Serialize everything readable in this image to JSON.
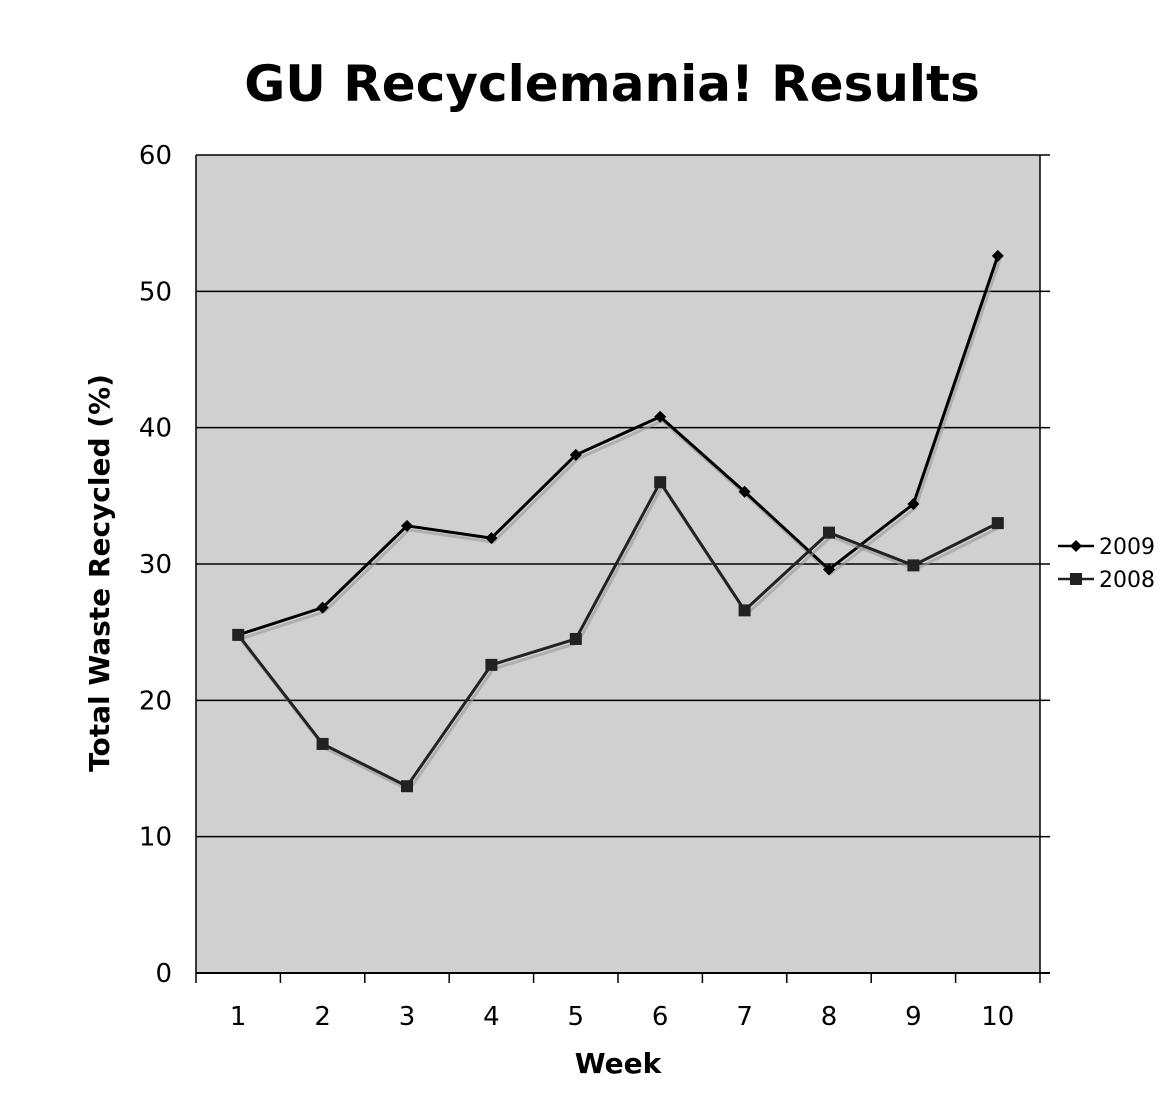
{
  "chart_data": {
    "type": "line",
    "title": "GU Recyclemania! Results",
    "xlabel": "Week",
    "ylabel": "Total Waste Recycled (%)",
    "categories": [
      "1",
      "2",
      "3",
      "4",
      "5",
      "6",
      "7",
      "8",
      "9",
      "10"
    ],
    "ylim": [
      0,
      60
    ],
    "yticks": [
      "0",
      "10",
      "20",
      "30",
      "40",
      "50",
      "60"
    ],
    "grid": true,
    "legend_position": "right",
    "plot_background": "#d0d0d0",
    "series": [
      {
        "name": "2009",
        "marker": "diamond",
        "color": "#000000",
        "values": [
          24.8,
          26.8,
          32.8,
          31.9,
          38.0,
          40.8,
          35.3,
          29.6,
          34.4,
          52.6
        ]
      },
      {
        "name": "2008",
        "marker": "square",
        "color": "#222222",
        "values": [
          24.8,
          16.8,
          13.7,
          22.6,
          24.5,
          36.0,
          26.6,
          32.3,
          29.9,
          33.0
        ]
      }
    ]
  }
}
